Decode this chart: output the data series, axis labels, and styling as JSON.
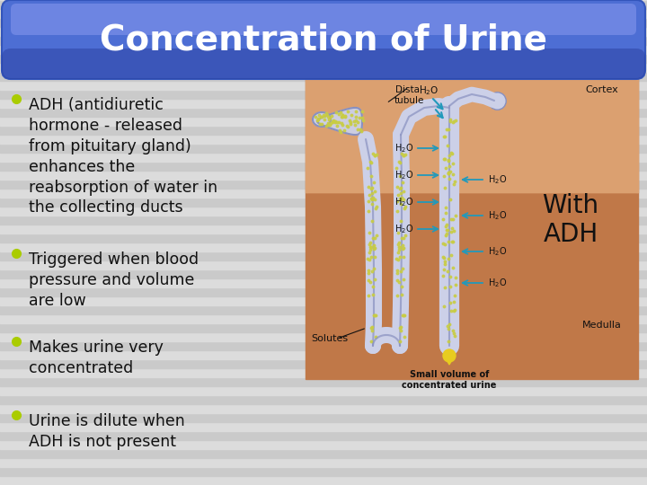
{
  "title": "Concentration of Urine",
  "title_fontsize": 28,
  "title_color": "#ffffff",
  "bg_stripe_light": "#dcdcdc",
  "bg_stripe_dark": "#cacaca",
  "bullet_color": "#aacc00",
  "bullet_points": [
    "ADH (antidiuretic\nhormone - released\nfrom pituitary gland)\nenhances the\nreabsorption of water in\nthe collecting ducts",
    "Triggered when blood\npressure and volume\nare low",
    "Makes urine very\nconcentrated",
    "Urine is dilute when\nADH is not present"
  ],
  "text_color": "#111111",
  "text_fontsize": 12.5,
  "with_adh_text": "With\nADH",
  "with_adh_fontsize": 20,
  "diagram_bg": "#c8845a",
  "cortex_bg": "#dca070",
  "tubule_fill": "#ccd0e8",
  "tubule_edge": "#8890c0",
  "dot_color": "#c8cc44",
  "arrow_color": "#2299bb",
  "medulla_bg": "#b87050"
}
